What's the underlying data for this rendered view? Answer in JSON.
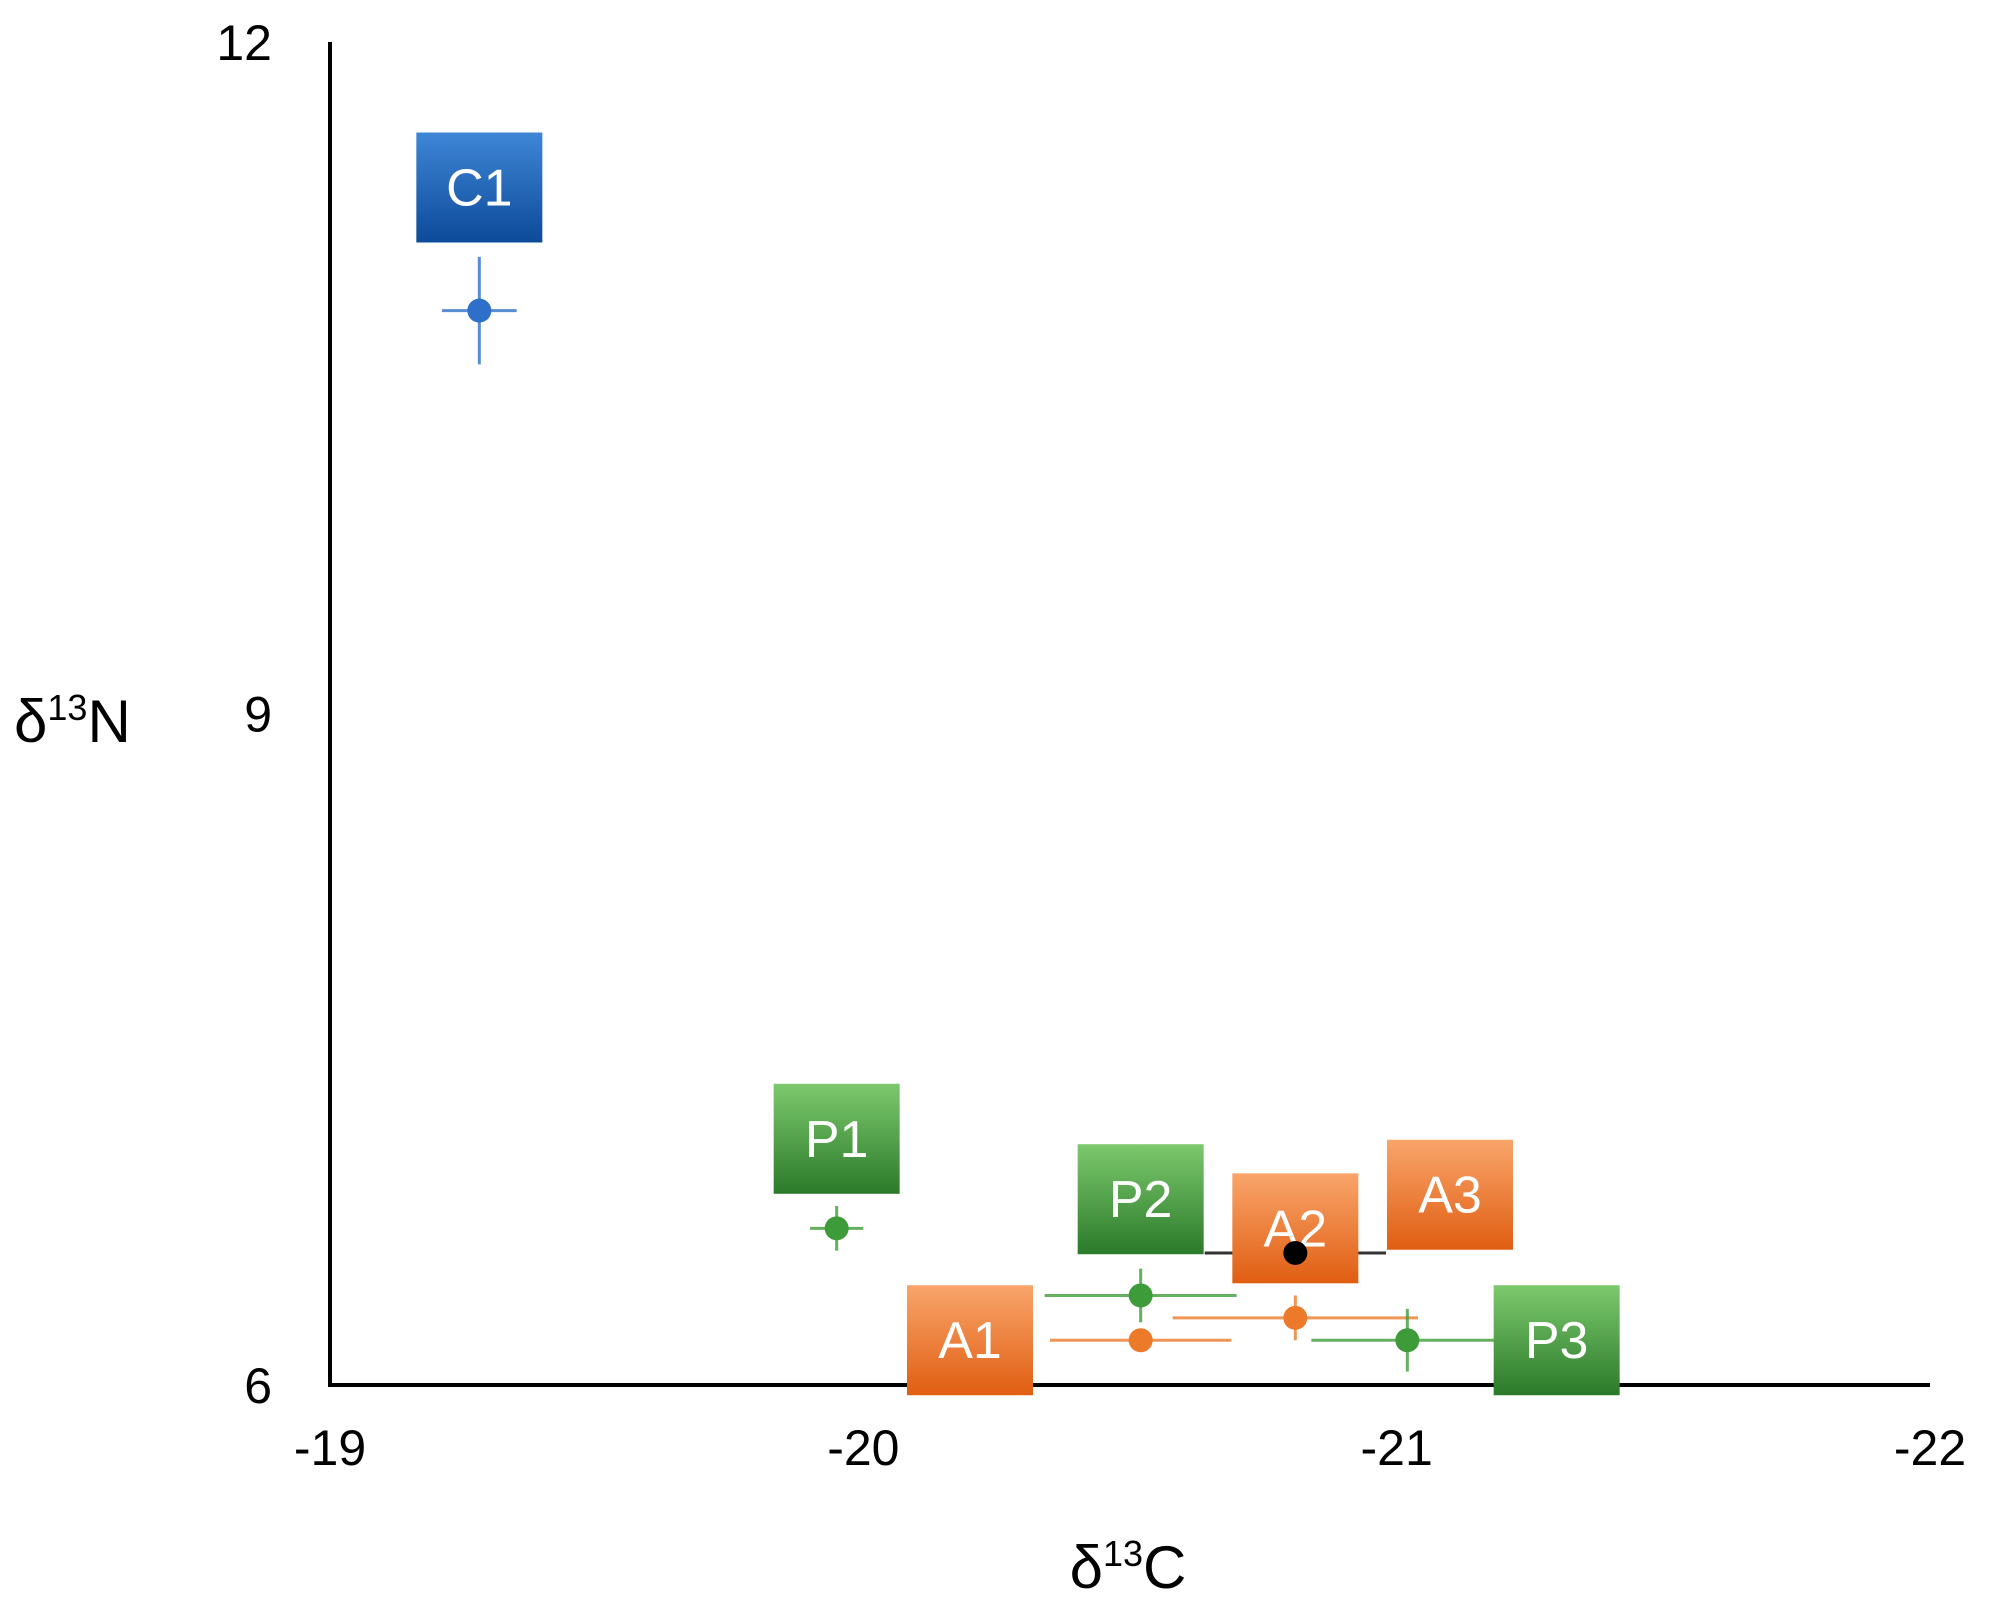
{
  "chart_data": {
    "type": "scatter",
    "title": "",
    "xlabel": {
      "base": "δ",
      "sup": "13",
      "tail": "C"
    },
    "ylabel": {
      "base": "δ",
      "sup": "13",
      "tail": "N"
    },
    "xlim": [
      -19,
      -22
    ],
    "ylim": [
      6,
      12
    ],
    "x_reversed": true,
    "grid": false,
    "x_ticks": [
      {
        "value": -19,
        "label": "-19"
      },
      {
        "value": -20,
        "label": "-20"
      },
      {
        "value": -21,
        "label": "-21"
      },
      {
        "value": -22,
        "label": "-22"
      }
    ],
    "y_ticks": [
      {
        "value": 6,
        "label": "6"
      },
      {
        "value": 9,
        "label": "9"
      },
      {
        "value": 12,
        "label": "12"
      }
    ],
    "colors": {
      "C": "#2e6fc9",
      "P": "#3e9b3a",
      "A": "#ec7a2a",
      "black": "#000000"
    },
    "points": [
      {
        "label": "C1",
        "group": "C",
        "x": -19.28,
        "y": 10.8,
        "xerr": 0.07,
        "yerr": 0.24,
        "label_box": {
          "x": -19.28,
          "y": 11.35
        }
      },
      {
        "label": "P1",
        "group": "P",
        "x": -19.95,
        "y": 6.7,
        "xerr": 0.05,
        "yerr": 0.1,
        "label_box": {
          "x": -19.95,
          "y": 7.1
        }
      },
      {
        "label": "P2",
        "group": "P",
        "x": -20.52,
        "y": 6.4,
        "xerr": 0.18,
        "yerr": 0.12,
        "label_box": {
          "x": -20.52,
          "y": 6.83
        }
      },
      {
        "label": "A1",
        "group": "A",
        "x": -20.52,
        "y": 6.2,
        "xerr": 0.17,
        "yerr": 0.0,
        "label_box": {
          "x": -20.2,
          "y": 6.2
        }
      },
      {
        "label": "A2",
        "group": "A",
        "x": -20.81,
        "y": 6.3,
        "xerr": 0.23,
        "yerr": 0.1,
        "label_box": {
          "x": -20.81,
          "y": 6.7
        }
      },
      {
        "label": "A3",
        "group": "A",
        "x": -20.81,
        "y": 6.3,
        "xerr": 0,
        "yerr": 0,
        "hidden_marker": true,
        "label_box": {
          "x": -21.1,
          "y": 6.85
        }
      },
      {
        "label": "P3",
        "group": "P",
        "x": -21.02,
        "y": 6.2,
        "xerr": 0.18,
        "yerr": 0.14,
        "label_box": {
          "x": -21.3,
          "y": 6.2
        }
      },
      {
        "label": "",
        "group": "black",
        "x": -20.81,
        "y": 6.59,
        "xerr": 0.17,
        "yerr": 0.08
      }
    ]
  }
}
